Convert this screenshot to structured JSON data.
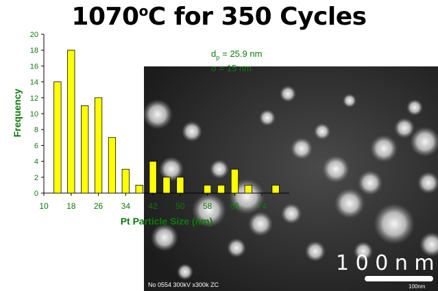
{
  "title": {
    "prefix": "1070",
    "superscript": "o",
    "suffix": "C for 350 Cycles"
  },
  "chart_data": {
    "type": "bar",
    "ylabel": "Frequency",
    "xlabel": "Pt Particle Size (nm)",
    "ylim": [
      0,
      20
    ],
    "yticks": [
      0,
      2,
      4,
      6,
      8,
      10,
      12,
      14,
      16,
      18,
      20
    ],
    "xticks": [
      "10",
      "18",
      "26",
      "34",
      "42",
      "50",
      "58",
      "66",
      "74"
    ],
    "x": [
      14,
      18,
      22,
      26,
      30,
      34,
      38,
      42,
      46,
      50,
      58,
      62,
      66,
      70,
      78
    ],
    "values": [
      14,
      18,
      11,
      12,
      7,
      3,
      1,
      4,
      2,
      2,
      1,
      1,
      3,
      1,
      1
    ],
    "annotation": {
      "dp_symbol": "d",
      "dp_subscript": "p",
      "dp_value": "= 25.9 nm",
      "sigma": "σ  = 15 nm"
    },
    "bar_color": "#ffff00",
    "grid": false
  },
  "micrograph": {
    "scale_text": "1 0 0 n m",
    "info_text": "No 0554  300kV  x300k  ZC",
    "scale_small": "100nm"
  }
}
